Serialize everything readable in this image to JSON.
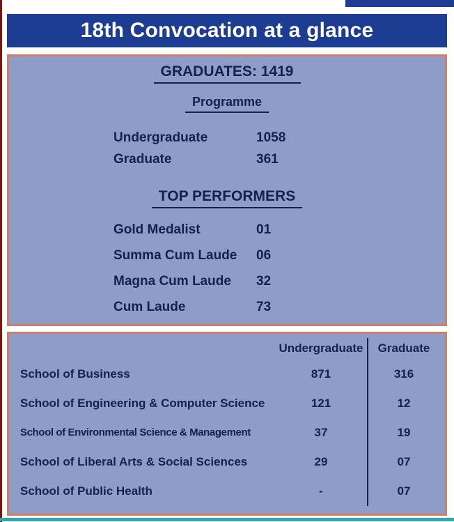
{
  "header": {
    "title": "18th Convocation at a glance"
  },
  "summary_panel": {
    "graduates_heading": "GRADUATES: 1419",
    "programme": {
      "heading": "Programme",
      "rows": [
        {
          "label": "Undergraduate",
          "value": "1058"
        },
        {
          "label": "Graduate",
          "value": "361"
        }
      ]
    },
    "top_performers": {
      "heading": "TOP PERFORMERS",
      "rows": [
        {
          "label": "Gold Medalist",
          "value": "01"
        },
        {
          "label": "Summa Cum Laude",
          "value": "06"
        },
        {
          "label": "Magna Cum Laude",
          "value": "32"
        },
        {
          "label": "Cum Laude",
          "value": "73"
        }
      ]
    }
  },
  "schools_panel": {
    "columns": {
      "undergraduate": "Undergraduate",
      "graduate": "Graduate"
    },
    "rows": [
      {
        "school": "School of Business",
        "undergraduate": "871",
        "graduate": "316"
      },
      {
        "school": "School of Engineering & Computer Science",
        "undergraduate": "121",
        "graduate": "12"
      },
      {
        "school": "School of Environmental Science & Management",
        "undergraduate": "37",
        "graduate": "19"
      },
      {
        "school": "School of Liberal Arts & Social Sciences",
        "undergraduate": "29",
        "graduate": "07"
      },
      {
        "school": "School of Public Health",
        "undergraduate": "-",
        "graduate": "07"
      }
    ]
  },
  "colors": {
    "header_bg": "#1d3d92",
    "panel_bg": "#8e9cc8",
    "panel_border": "#cc8166",
    "text": "#14204e",
    "bottom_line": "#2fa8ab",
    "edge_line": "#7b150c"
  }
}
